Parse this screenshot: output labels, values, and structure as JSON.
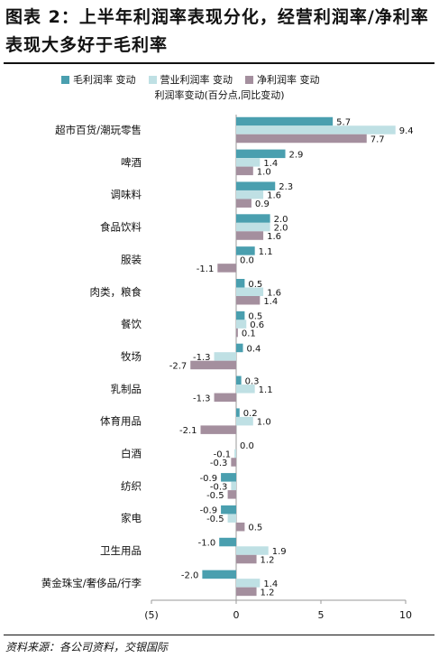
{
  "title": "图表 2：上半年利润率表现分化，经营利润率/净利率表现大多好于毛利率",
  "source": "资料来源：各公司资料，交银国际",
  "legend": [
    {
      "label": "毛利润率 变动",
      "color": "#4a9faf"
    },
    {
      "label": "营业利润率 变动",
      "color": "#bfe0e4"
    },
    {
      "label": "净利润率 变动",
      "color": "#a48f9e"
    }
  ],
  "chart_data": {
    "type": "bar",
    "orientation": "horizontal",
    "subtitle": "利润率变动(百分点,同比变动)",
    "categories": [
      "超市百货/潮玩零售",
      "啤酒",
      "调味料",
      "食品饮料",
      "服装",
      "肉类，粮食",
      "餐饮",
      "牧场",
      "乳制品",
      "体育用品",
      "白酒",
      "纺织",
      "家电",
      "卫生用品",
      "黄金珠宝/奢侈品/行李"
    ],
    "series": [
      {
        "name": "毛利润率 变动",
        "color": "#4a9faf",
        "values": [
          5.7,
          2.9,
          2.3,
          2.0,
          1.1,
          0.5,
          0.5,
          0.4,
          0.3,
          0.2,
          0.0,
          -0.9,
          -0.9,
          -1.0,
          -2.0
        ]
      },
      {
        "name": "营业利润率 变动",
        "color": "#bfe0e4",
        "values": [
          9.4,
          1.4,
          1.6,
          2.0,
          0.0,
          1.6,
          0.6,
          -1.3,
          1.1,
          1.0,
          -0.1,
          -0.3,
          -0.5,
          1.9,
          1.4
        ]
      },
      {
        "name": "净利润率 变动",
        "color": "#a48f9e",
        "values": [
          7.7,
          1.0,
          0.9,
          1.6,
          -1.1,
          1.4,
          0.1,
          -2.7,
          -1.3,
          -2.1,
          -0.3,
          -0.5,
          0.5,
          1.2,
          1.2
        ]
      }
    ],
    "xlim": [
      -5,
      10
    ],
    "xticks": [
      -5,
      0,
      5,
      10
    ],
    "xtick_labels": [
      "(5)",
      "0",
      "5",
      "10"
    ],
    "grid": false
  }
}
